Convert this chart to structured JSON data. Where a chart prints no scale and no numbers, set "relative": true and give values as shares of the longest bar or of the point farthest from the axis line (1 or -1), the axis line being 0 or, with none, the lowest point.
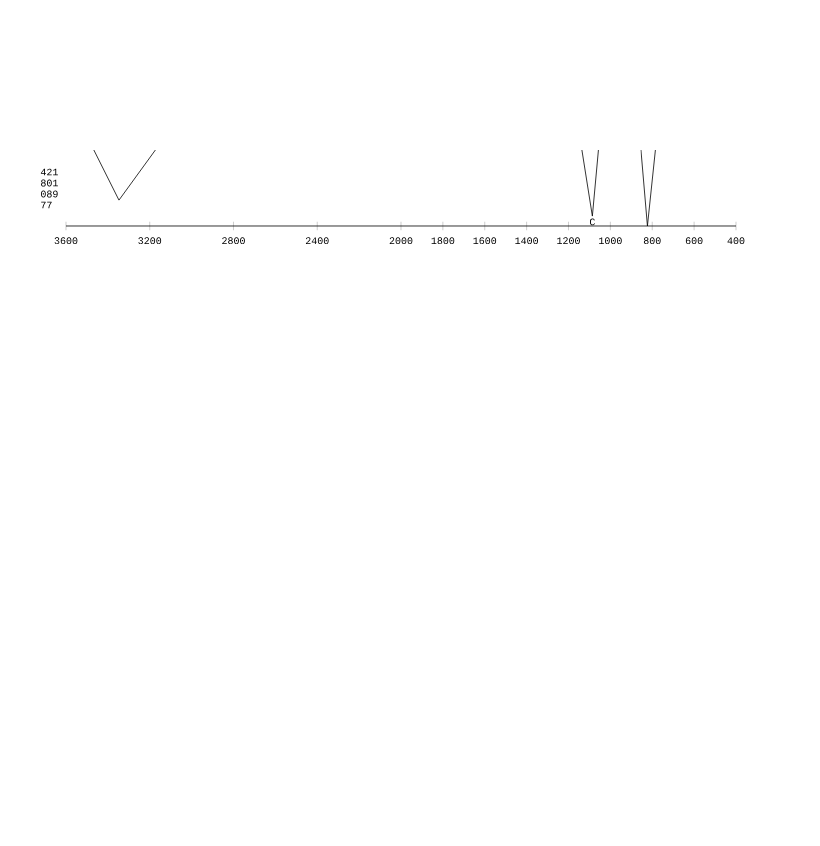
{
  "chart_data": {
    "type": "line",
    "relative": true,
    "x": [
      3467,
      3347,
      3173,
      2000,
      1136,
      1086,
      1057,
      950,
      854,
      823,
      785
    ],
    "series": [
      {
        "color": "#000000",
        "values": [
          1,
          0.34,
          1,
          null,
          1,
          0.13,
          1,
          null,
          1,
          0,
          1
        ]
      }
    ],
    "xlim": [
      3600,
      400
    ],
    "xticks": [
      3600,
      3200,
      2800,
      2400,
      2000,
      1800,
      1600,
      1400,
      1200,
      1000,
      800,
      600,
      400
    ],
    "marker": "none",
    "line_style": "solid",
    "annotations": [
      "421",
      "801",
      "089",
      "77",
      {
        "text": "C",
        "x": 1086,
        "y": 0.13
      }
    ]
  }
}
